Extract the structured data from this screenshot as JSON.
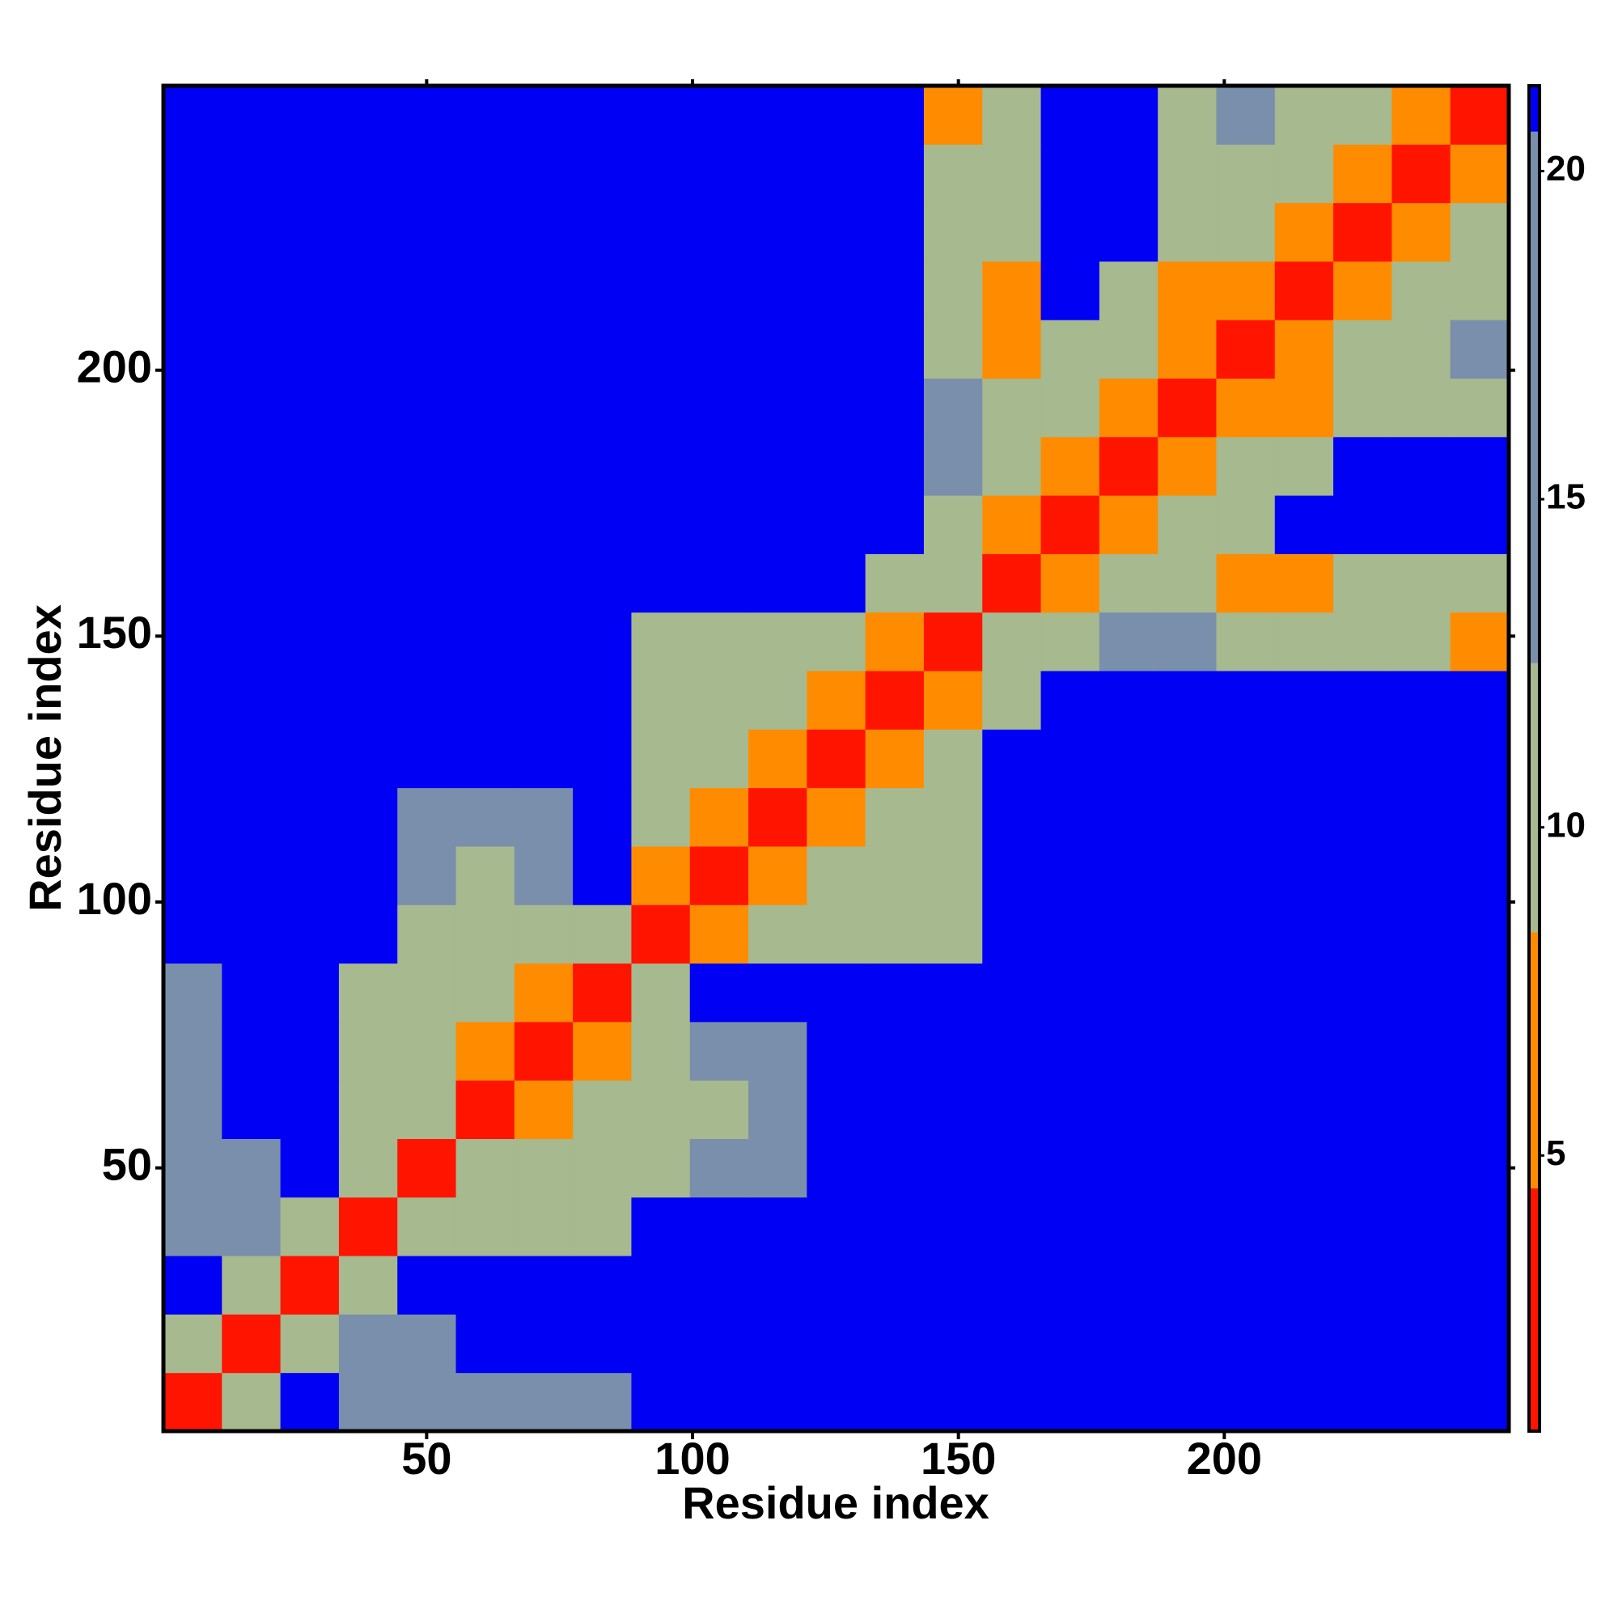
{
  "chart_data": {
    "type": "heatmap",
    "x_label": "Residue index",
    "y_label": "Residue index",
    "xlim": [
      0.5,
      253.5
    ],
    "ylim": [
      0.5,
      253.5
    ],
    "xticks": [
      50,
      100,
      150,
      200
    ],
    "yticks": [
      50,
      100,
      150,
      200
    ],
    "x": [
      6,
      17,
      28,
      39,
      50,
      61,
      72,
      83,
      94,
      105,
      116,
      127,
      138,
      149,
      160,
      171,
      182,
      193,
      204,
      215,
      226,
      237,
      248
    ],
    "y": [
      6,
      17,
      28,
      39,
      50,
      61,
      72,
      83,
      94,
      105,
      116,
      127,
      138,
      149,
      160,
      171,
      182,
      193,
      204,
      215,
      226,
      237,
      248
    ],
    "z": [
      [
        3,
        10,
        21,
        14,
        13,
        13,
        13,
        14,
        21,
        21,
        21,
        21,
        21,
        21,
        21,
        21,
        21,
        21,
        21,
        21,
        21,
        21,
        21
      ],
      [
        10,
        3,
        9,
        13,
        14,
        21,
        21,
        21,
        21,
        21,
        21,
        21,
        21,
        21,
        21,
        21,
        21,
        21,
        21,
        21,
        21,
        21,
        21
      ],
      [
        21,
        9,
        3,
        10,
        21,
        21,
        21,
        21,
        21,
        21,
        21,
        21,
        21,
        21,
        21,
        21,
        21,
        21,
        21,
        21,
        21,
        21,
        21
      ],
      [
        14,
        13,
        10,
        3,
        11,
        12,
        12,
        11,
        21,
        21,
        21,
        21,
        21,
        21,
        21,
        21,
        21,
        21,
        21,
        21,
        21,
        21,
        21
      ],
      [
        13,
        14,
        21,
        11,
        3,
        10,
        10,
        10,
        12,
        13,
        13,
        21,
        21,
        21,
        21,
        21,
        21,
        21,
        21,
        21,
        21,
        21,
        21
      ],
      [
        13,
        21,
        21,
        12,
        10,
        3,
        8,
        9,
        11,
        12,
        13,
        21,
        21,
        21,
        21,
        21,
        21,
        21,
        21,
        21,
        21,
        21,
        21
      ],
      [
        13,
        21,
        21,
        12,
        10,
        8,
        3,
        8,
        10,
        13,
        14,
        21,
        21,
        21,
        21,
        21,
        21,
        21,
        21,
        21,
        21,
        21,
        21
      ],
      [
        14,
        21,
        21,
        11,
        10,
        9,
        8,
        3,
        9,
        21,
        21,
        21,
        21,
        21,
        21,
        21,
        21,
        21,
        21,
        21,
        21,
        21,
        21
      ],
      [
        21,
        21,
        21,
        21,
        12,
        11,
        10,
        9,
        3,
        7,
        9,
        10,
        11,
        12,
        21,
        21,
        21,
        21,
        21,
        21,
        21,
        21,
        21
      ],
      [
        21,
        21,
        21,
        21,
        13,
        12,
        13,
        21,
        7,
        3,
        8,
        9,
        10,
        11,
        21,
        21,
        21,
        21,
        21,
        21,
        21,
        21,
        21
      ],
      [
        21,
        21,
        21,
        21,
        13,
        13,
        14,
        21,
        9,
        8,
        3,
        7,
        9,
        11,
        21,
        21,
        21,
        21,
        21,
        21,
        21,
        21,
        21
      ],
      [
        21,
        21,
        21,
        21,
        21,
        21,
        21,
        21,
        10,
        9,
        7,
        3,
        7,
        10,
        21,
        21,
        21,
        21,
        21,
        21,
        21,
        21,
        21
      ],
      [
        21,
        21,
        21,
        21,
        21,
        21,
        21,
        21,
        11,
        10,
        9,
        7,
        3,
        8,
        12,
        21,
        21,
        21,
        21,
        21,
        21,
        21,
        21
      ],
      [
        21,
        21,
        21,
        21,
        21,
        21,
        21,
        21,
        12,
        11,
        11,
        10,
        8,
        3,
        9,
        12,
        13,
        13,
        12,
        10,
        11,
        10,
        7
      ],
      [
        21,
        21,
        21,
        21,
        21,
        21,
        21,
        21,
        21,
        21,
        21,
        21,
        12,
        9,
        3,
        8,
        9,
        10,
        8,
        7,
        10,
        11,
        9
      ],
      [
        21,
        21,
        21,
        21,
        21,
        21,
        21,
        21,
        21,
        21,
        21,
        21,
        21,
        12,
        8,
        3,
        8,
        10,
        11,
        21,
        21,
        21,
        21
      ],
      [
        21,
        21,
        21,
        21,
        21,
        21,
        21,
        21,
        21,
        21,
        21,
        21,
        21,
        13,
        9,
        8,
        3,
        8,
        10,
        12,
        21,
        21,
        21
      ],
      [
        21,
        21,
        21,
        21,
        21,
        21,
        21,
        21,
        21,
        21,
        21,
        21,
        21,
        13,
        10,
        10,
        8,
        3,
        7,
        7,
        10,
        11,
        12
      ],
      [
        21,
        21,
        21,
        21,
        21,
        21,
        21,
        21,
        21,
        21,
        21,
        21,
        21,
        12,
        8,
        11,
        10,
        7,
        3,
        7,
        10,
        12,
        13
      ],
      [
        21,
        21,
        21,
        21,
        21,
        21,
        21,
        21,
        21,
        21,
        21,
        21,
        21,
        10,
        7,
        21,
        12,
        7,
        7,
        3,
        8,
        10,
        12
      ],
      [
        21,
        21,
        21,
        21,
        21,
        21,
        21,
        21,
        21,
        21,
        21,
        21,
        21,
        11,
        10,
        21,
        21,
        10,
        10,
        8,
        3,
        8,
        10
      ],
      [
        21,
        21,
        21,
        21,
        21,
        21,
        21,
        21,
        21,
        21,
        21,
        21,
        21,
        10,
        11,
        21,
        21,
        11,
        12,
        10,
        8,
        3,
        8
      ],
      [
        21,
        21,
        21,
        21,
        21,
        21,
        21,
        21,
        21,
        21,
        21,
        21,
        21,
        7,
        9,
        21,
        21,
        12,
        13,
        12,
        10,
        8,
        3
      ]
    ],
    "zlim": [
      0.8,
      21.3
    ],
    "colorbar_ticks": [
      5,
      10,
      15,
      20
    ],
    "color_bands": [
      {
        "from": 0.8,
        "to": 4.5,
        "color": "#ff1400"
      },
      {
        "from": 4.5,
        "to": 8.4,
        "color": "#ff8c00"
      },
      {
        "from": 8.4,
        "to": 12.5,
        "color": "#a7b98e"
      },
      {
        "from": 12.5,
        "to": 20.6,
        "color": "#7a8fab"
      },
      {
        "from": 20.6,
        "to": 21.3,
        "color": "#0000f5"
      }
    ]
  }
}
